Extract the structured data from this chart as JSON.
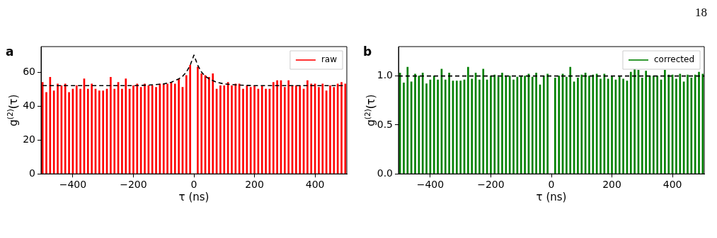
{
  "chart_data": [
    {
      "type": "bar",
      "title": "a",
      "xlabel": "τ (ns)",
      "ylabel": "g$^{(2)}$(τ)",
      "annotations": [
        "18"
      ],
      "x": [
        -500,
        -487.5,
        -475,
        -462.5,
        -450,
        -437.5,
        -425,
        -412.5,
        -400,
        -387.5,
        -375,
        -362.5,
        -350,
        -337.5,
        -325,
        -312.5,
        -300,
        -287.5,
        -275,
        -262.5,
        -250,
        -237.5,
        -225,
        -212.5,
        -200,
        -187.5,
        -175,
        -162.5,
        -150,
        -137.5,
        -125,
        -112.5,
        -100,
        -87.5,
        -75,
        -62.5,
        -50,
        -37.5,
        -25,
        -12.5,
        0,
        12.5,
        25,
        37.5,
        50,
        62.5,
        75,
        87.5,
        100,
        112.5,
        125,
        137.5,
        150,
        162.5,
        175,
        187.5,
        200,
        212.5,
        225,
        237.5,
        250,
        262.5,
        275,
        287.5,
        300,
        312.5,
        325,
        337.5,
        350,
        362.5,
        375,
        387.5,
        400,
        412.5,
        425,
        437.5,
        450,
        462.5,
        475,
        487.5,
        500
      ],
      "series": [
        {
          "name": "raw",
          "color": "#ff0000",
          "values": [
            54,
            48,
            57,
            49,
            53,
            52,
            53,
            48,
            50,
            52,
            50,
            56,
            50,
            53,
            50,
            49,
            49,
            50,
            57,
            50,
            54,
            50,
            56,
            50,
            52,
            53,
            51,
            53,
            52,
            52,
            51,
            53,
            53,
            53,
            54,
            53,
            56,
            51,
            58,
            64,
            0,
            63,
            59,
            58,
            57,
            59,
            50,
            52,
            52,
            54,
            52,
            53,
            53,
            50,
            52,
            51,
            52,
            50,
            52,
            50,
            50,
            54,
            55,
            55,
            51,
            55,
            52,
            52,
            52,
            50,
            55,
            53,
            53,
            51,
            53,
            49,
            52,
            51,
            53,
            54,
            53
          ]
        },
        {
          "type": "line",
          "color": "#000000",
          "line_style": "dashed",
          "marker": "none",
          "x": [
            -500,
            -200,
            -150,
            -100,
            -75,
            -50,
            -37.5,
            -25,
            -12.5,
            0,
            12.5,
            25,
            37.5,
            50,
            75,
            100,
            150,
            200,
            500
          ],
          "values": [
            52,
            52,
            52.3,
            53,
            54,
            56,
            57.5,
            60,
            64,
            70,
            64,
            60,
            57.5,
            56,
            54,
            53,
            52.3,
            52,
            52
          ]
        }
      ],
      "xlim": [
        -505,
        505
      ],
      "ylim": [
        0,
        75
      ],
      "xticks": [
        -400,
        -200,
        0,
        200,
        400
      ],
      "yticks": [
        0,
        20,
        40,
        60
      ],
      "grid": false,
      "legend": "top right"
    },
    {
      "type": "bar",
      "title": "b",
      "xlabel": "τ (ns)",
      "ylabel": "g$^{(2)}$(τ)",
      "x": [
        -500,
        -487.5,
        -475,
        -462.5,
        -450,
        -437.5,
        -425,
        -412.5,
        -400,
        -387.5,
        -375,
        -362.5,
        -350,
        -337.5,
        -325,
        -312.5,
        -300,
        -287.5,
        -275,
        -262.5,
        -250,
        -237.5,
        -225,
        -212.5,
        -200,
        -187.5,
        -175,
        -162.5,
        -150,
        -137.5,
        -125,
        -112.5,
        -100,
        -87.5,
        -75,
        -62.5,
        -50,
        -37.5,
        -25,
        -12.5,
        0,
        12.5,
        25,
        37.5,
        50,
        62.5,
        75,
        87.5,
        100,
        112.5,
        125,
        137.5,
        150,
        162.5,
        175,
        187.5,
        200,
        212.5,
        225,
        237.5,
        250,
        262.5,
        275,
        287.5,
        300,
        312.5,
        325,
        337.5,
        350,
        362.5,
        375,
        387.5,
        400,
        412.5,
        425,
        437.5,
        450,
        462.5,
        475,
        487.5,
        500
      ],
      "series": [
        {
          "name": "corrected",
          "color": "#008000",
          "values": [
            1.03,
            0.93,
            1.09,
            0.94,
            1.02,
            1.0,
            1.03,
            0.92,
            0.96,
            1.0,
            0.96,
            1.07,
            0.96,
            1.03,
            0.95,
            0.95,
            0.95,
            0.96,
            1.09,
            0.97,
            1.03,
            0.96,
            1.07,
            0.96,
            1.0,
            1.01,
            0.99,
            1.03,
            1.0,
            1.0,
            0.96,
            0.99,
            1.0,
            1.0,
            1.02,
            0.99,
            1.03,
            0.91,
            1.0,
            1.02,
            0,
            0.98,
            1.0,
            1.02,
            0.99,
            1.09,
            0.94,
            0.98,
            1.01,
            1.03,
            1.0,
            1.01,
            1.02,
            0.97,
            1.02,
            0.97,
            1.0,
            0.96,
            1.0,
            0.97,
            0.95,
            1.04,
            1.07,
            1.06,
            0.98,
            1.05,
            1.0,
            1.0,
            1.0,
            0.96,
            1.06,
            1.01,
            1.01,
            0.97,
            1.02,
            0.94,
            1.01,
            0.98,
            1.01,
            1.04,
            1.02
          ]
        }
      ],
      "xlim": [
        -505,
        505
      ],
      "ylim": [
        0,
        1.3
      ],
      "xticks": [
        -400,
        -200,
        0,
        200,
        400
      ],
      "yticks": [
        {
          "value": 0,
          "label": "0.0"
        },
        0.5,
        {
          "value": 1,
          "label": "1.0"
        }
      ],
      "grid": false,
      "legend": "top right",
      "ref_lines": [
        {
          "axis": "y",
          "value": 1,
          "color": "#000000",
          "line_style": "dashed"
        }
      ]
    }
  ]
}
